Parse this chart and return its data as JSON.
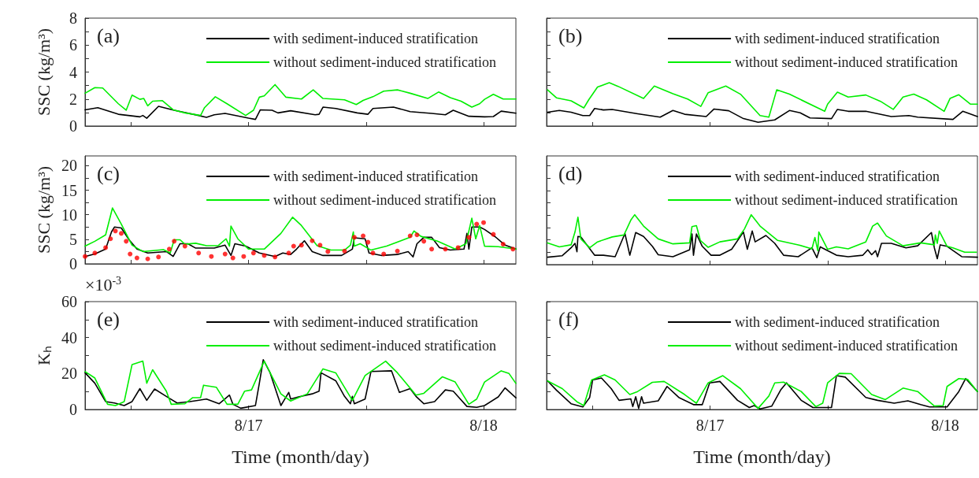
{
  "chart_data": [
    {
      "type": "line",
      "title": "(a)",
      "ylabel": "SSC (kg/m³)",
      "xlim": [
        "--08-16T07:18",
        "--08-18T03:18"
      ],
      "xticks": [
        {
          "value": "--08-16T12:00",
          "label": null
        },
        {
          "value": "--08-17",
          "label": "8/17"
        },
        {
          "value": "--08-17T12:00",
          "label": null
        },
        {
          "value": "--08-18",
          "label": "8/18"
        }
      ],
      "ylim": [
        0,
        8
      ],
      "yticks": [
        0,
        {
          "value": 1,
          "label": null
        },
        2,
        {
          "value": 3,
          "label": null
        },
        4,
        {
          "value": 5,
          "label": null
        },
        6,
        {
          "value": 7,
          "label": null
        },
        8
      ],
      "tick_labels": "y",
      "legend": "top right",
      "marker": "none",
      "line_style": "solid",
      "series": [
        {
          "name": "with sediment-induced stratification",
          "color": "#000000",
          "x": [
            "--08-16T07:18",
            "--08-16T08:36",
            "--08-16T10:42",
            "--08-16T12:54",
            "--08-16T13:12",
            "--08-16T13:36",
            "--08-16T14:48",
            "--08-16T16:24",
            "--08-16T18:54",
            "--08-16T19:42",
            "--08-16T20:30",
            "--08-16T21:36",
            "--08-17T00:00",
            "--08-17T00:42",
            "--08-17T01:12",
            "--08-17T02:24",
            "--08-17T03:00",
            "--08-17T04:18",
            "--08-17T06:48",
            "--08-17T07:12",
            "--08-17T07:36",
            "--08-17T08:54",
            "--08-17T11:06",
            "--08-17T12:12",
            "--08-17T12:42",
            "--08-17T14:48",
            "--08-17T16:30",
            "--08-17T18:42",
            "--08-17T20:06",
            "--08-17T20:54",
            "--08-17T22:30",
            "--08-18T00:06",
            "--08-18T01:00",
            "--08-18T01:48",
            "--08-18T03:18"
          ],
          "values": [
            1.2,
            1.36,
            0.87,
            0.68,
            0.78,
            0.58,
            1.46,
            1.17,
            0.78,
            0.64,
            0.83,
            0.93,
            0.58,
            0.49,
            1.2,
            1.17,
            0.97,
            1.13,
            0.83,
            0.87,
            1.4,
            1.3,
            0.97,
            0.87,
            1.3,
            1.4,
            1.07,
            0.93,
            0.83,
            1.17,
            0.72,
            0.68,
            0.7,
            1.1,
            0.95
          ]
        },
        {
          "name": "without sediment-induced stratification",
          "color": "#00ee00",
          "x": [
            "--08-16T07:18",
            "--08-16T08:18",
            "--08-16T09:06",
            "--08-16T10:42",
            "--08-16T11:30",
            "--08-16T12:06",
            "--08-16T12:54",
            "--08-16T13:18",
            "--08-16T13:42",
            "--08-16T14:12",
            "--08-16T15:12",
            "--08-16T16:18",
            "--08-16T17:30",
            "--08-16T19:06",
            "--08-16T19:30",
            "--08-16T20:36",
            "--08-16T21:48",
            "--08-16T23:42",
            "--08-17T00:30",
            "--08-17T01:06",
            "--08-17T01:36",
            "--08-17T02:42",
            "--08-17T03:48",
            "--08-17T05:24",
            "--08-17T06:36",
            "--08-17T07:36",
            "--08-17T09:48",
            "--08-17T11:00",
            "--08-17T11:42",
            "--08-17T12:42",
            "--08-17T13:48",
            "--08-17T15:12",
            "--08-17T16:30",
            "--08-17T18:18",
            "--08-17T19:24",
            "--08-17T20:36",
            "--08-17T21:42",
            "--08-17T22:48",
            "--08-17T23:36",
            "--08-18T00:06",
            "--08-18T01:00",
            "--08-18T02:00",
            "--08-18T03:18"
          ],
          "values": [
            2.43,
            2.85,
            2.82,
            1.65,
            1.17,
            2.29,
            1.98,
            2.04,
            1.5,
            1.84,
            1.88,
            1.2,
            0.97,
            0.78,
            1.36,
            2.17,
            1.65,
            0.78,
            1.17,
            2.14,
            2.23,
            3.07,
            2.14,
            2.0,
            2.68,
            2.04,
            1.94,
            1.59,
            1.9,
            2.17,
            2.58,
            2.68,
            2.43,
            2.04,
            2.52,
            2.1,
            1.84,
            1.4,
            1.65,
            1.98,
            2.35,
            2.0,
            2.0
          ]
        }
      ]
    },
    {
      "type": "line",
      "title": "(b)",
      "xlim": [
        "--08-16T07:18",
        "--08-18T03:18"
      ],
      "xticks": [
        {
          "value": "--08-16T12:00",
          "label": null
        },
        {
          "value": "--08-17",
          "label": "8/17"
        },
        {
          "value": "--08-17T12:00",
          "label": null
        },
        {
          "value": "--08-18",
          "label": "8/18"
        }
      ],
      "ylim": [
        0,
        8
      ],
      "yticks": [
        0,
        {
          "value": 1,
          "label": null
        },
        2,
        {
          "value": 3,
          "label": null
        },
        4,
        {
          "value": 5,
          "label": null
        },
        6,
        {
          "value": 7,
          "label": null
        },
        8
      ],
      "tick_labels": false,
      "legend": "top right",
      "marker": "none",
      "line_style": "solid",
      "series": [
        {
          "name": "with sediment-induced stratification",
          "color": "#000000",
          "x": [
            "--08-16T07:24",
            "--08-16T08:36",
            "--08-16T09:48",
            "--08-16T11:00",
            "--08-16T11:42",
            "--08-16T12:12",
            "--08-16T13:06",
            "--08-16T14:00",
            "--08-16T16:36",
            "--08-16T18:54",
            "--08-16T20:12",
            "--08-16T21:24",
            "--08-16T23:36",
            "--08-17T00:24",
            "--08-17T01:54",
            "--08-17T03:24",
            "--08-17T04:54",
            "--08-17T06:36",
            "--08-17T08:06",
            "--08-17T09:12",
            "--08-17T10:12",
            "--08-17T12:24",
            "--08-17T13:00",
            "--08-17T14:06",
            "--08-17T15:54",
            "--08-17T18:30",
            "--08-17T20:18",
            "--08-17T21:12",
            "--08-18T00:48",
            "--08-18T01:48",
            "--08-18T03:18"
          ],
          "values": [
            1.02,
            1.15,
            1.02,
            0.77,
            0.77,
            1.3,
            1.19,
            1.23,
            0.91,
            0.66,
            1.15,
            0.87,
            0.7,
            1.26,
            1.13,
            0.55,
            0.28,
            0.45,
            1.15,
            0.98,
            0.6,
            0.55,
            1.23,
            1.09,
            1.09,
            0.7,
            0.77,
            0.66,
            0.49,
            1.09,
            0.7
          ]
        },
        {
          "name": "without sediment-induced stratification",
          "color": "#00ee00",
          "x": [
            "--08-16T07:24",
            "--08-16T08:18",
            "--08-16T09:48",
            "--08-16T11:06",
            "--08-16T11:36",
            "--08-16T12:30",
            "--08-16T13:42",
            "--08-16T14:36",
            "--08-16T17:12",
            "--08-16T18:18",
            "--08-16T20:12",
            "--08-16T21:42",
            "--08-16T23:03",
            "--08-16T23:48",
            "--08-17T01:36",
            "--08-17T03:06",
            "--08-17T05:06",
            "--08-17T06:00",
            "--08-17T06:48",
            "--08-17T08:06",
            "--08-17T11:42",
            "--08-17T12:00",
            "--08-17T13:00",
            "--08-17T14:06",
            "--08-17T15:54",
            "--08-17T17:24",
            "--08-17T18:42",
            "--08-17T19:42",
            "--08-17T20:48",
            "--08-17T22:06",
            "--08-17T23:54",
            "--08-18T00:30",
            "--08-18T01:24",
            "--08-18T02:36",
            "--08-18T03:18"
          ],
          "values": [
            2.68,
            2.09,
            1.87,
            1.34,
            1.94,
            2.89,
            3.21,
            2.94,
            2.04,
            2.96,
            2.4,
            2.0,
            1.45,
            2.47,
            2.96,
            2.36,
            0.77,
            0.66,
            2.68,
            2.36,
            1.09,
            1.62,
            2.51,
            2.15,
            2.3,
            1.83,
            1.23,
            2.15,
            2.36,
            1.94,
            1.09,
            2.04,
            2.32,
            1.62,
            1.62
          ]
        }
      ]
    },
    {
      "type": "line",
      "title": "(c)",
      "ylabel": "SSC (kg/m³)",
      "xlim": [
        "--08-16T07:18",
        "--08-18T03:18"
      ],
      "xticks": [
        {
          "value": "--08-16T12:00",
          "label": null
        },
        {
          "value": "--08-17",
          "label": "8/17"
        },
        {
          "value": "--08-17T12:00",
          "label": null
        },
        {
          "value": "--08-18",
          "label": "8/18"
        }
      ],
      "ylim": [
        0,
        22
      ],
      "yticks": [
        0,
        {
          "value": 2.5,
          "label": null
        },
        5,
        {
          "value": 7.5,
          "label": null
        },
        10,
        {
          "value": 12.5,
          "label": null
        },
        15,
        {
          "value": 17.5,
          "label": null
        },
        20
      ],
      "tick_labels": "y",
      "legend": "top right",
      "marker": "none",
      "line_style": "solid",
      "series": [
        {
          "name": "with sediment-induced stratification",
          "color": "#000000",
          "x": [
            "--08-16T07:18",
            "--08-16T08:18",
            "--08-16T09:24",
            "--08-16T10:00",
            "--08-16T10:18",
            "--08-16T11:00",
            "--08-16T11:48",
            "--08-16T12:36",
            "--08-16T13:42",
            "--08-16T15:36",
            "--08-16T16:18",
            "--08-16T17:00",
            "--08-16T17:48",
            "--08-16T18:36",
            "--08-16T20:30",
            "--08-16T21:36",
            "--08-16T22:12",
            "--08-16T22:36",
            "--08-16T23:42",
            "--08-17T01:06",
            "--08-17T02:42",
            "--08-17T03:30",
            "--08-17T04:18",
            "--08-17T04:54",
            "--08-17T05:42",
            "--08-17T06:30",
            "--08-17T07:36",
            "--08-17T09:30",
            "--08-17T10:36",
            "--08-17T10:48",
            "--08-17T11:54",
            "--08-17T12:18",
            "--08-17T13:36",
            "--08-17T15:12",
            "--08-17T16:18",
            "--08-17T16:48",
            "--08-17T17:12",
            "--08-17T17:54",
            "--08-17T18:42",
            "--08-17T19:30",
            "--08-17T20:36",
            "--08-17T22:00",
            "--08-17T22:18",
            "--08-17T22:30",
            "--08-17T22:48",
            "--08-17T23:36",
            "--08-18T00:06",
            "--08-18T01:12",
            "--08-18T02:12",
            "--08-18T03:18"
          ],
          "values": [
            1.5,
            2.0,
            3.0,
            6.5,
            7.5,
            7.3,
            4.9,
            3.0,
            2.2,
            2.5,
            1.5,
            4.1,
            4.1,
            3.2,
            3.2,
            3.8,
            1.7,
            4.1,
            3.6,
            2.2,
            1.5,
            2.2,
            1.9,
            3.0,
            4.7,
            2.5,
            1.7,
            1.7,
            3.0,
            5.3,
            5.1,
            2.2,
            1.7,
            1.9,
            2.5,
            1.4,
            4.1,
            5.4,
            5.4,
            3.3,
            2.8,
            3.0,
            6.2,
            3.0,
            7.5,
            7.5,
            7.0,
            5.5,
            3.8,
            3.0
          ]
        },
        {
          "name": "without sediment-induced stratification",
          "color": "#00ee00",
          "x": [
            "--08-16T07:18",
            "--08-16T08:18",
            "--08-16T09:24",
            "--08-16T10:06",
            "--08-16T11:00",
            "--08-16T12:06",
            "--08-16T13:12",
            "--08-16T15:18",
            "--08-16T16:00",
            "--08-16T16:24",
            "--08-16T17:00",
            "--08-16T17:30",
            "--08-16T18:36",
            "--08-16T19:42",
            "--08-16T20:54",
            "--08-16T21:42",
            "--08-16T22:03",
            "--08-16T22:12",
            "--08-16T22:54",
            "--08-17T00:00",
            "--08-17T01:36",
            "--08-17T03:18",
            "--08-17T04:30",
            "--08-17T05:24",
            "--08-17T07:00",
            "--08-17T08:24",
            "--08-17T09:48",
            "--08-17T10:24",
            "--08-17T10:42",
            "--08-17T10:48",
            "--08-17T11:24",
            "--08-17T12:30",
            "--08-17T14:06",
            "--08-17T16:30",
            "--08-17T16:54",
            "--08-17T17:36",
            "--08-17T19:18",
            "--08-17T21:06",
            "--08-17T22:12",
            "--08-17T22:48",
            "--08-17T23:12",
            "--08-17T23:36",
            "--08-18T00:06",
            "--08-18T01:30",
            "--08-18T03:18"
          ],
          "values": [
            3.6,
            4.6,
            5.9,
            11.4,
            8.1,
            3.8,
            2.5,
            2.9,
            2.2,
            4.9,
            4.9,
            4.0,
            4.2,
            3.7,
            3.7,
            5.1,
            3.6,
            7.7,
            5.1,
            3.0,
            3.0,
            6.2,
            9.5,
            7.8,
            3.7,
            2.8,
            2.8,
            3.8,
            6.5,
            3.6,
            4.1,
            2.8,
            3.6,
            5.4,
            6.7,
            5.6,
            4.6,
            3.0,
            4.1,
            9.3,
            5.1,
            7.8,
            3.6,
            3.5,
            3.0
          ]
        },
        {
          "type": "scatter",
          "marker": "circle",
          "color": "#ff0000",
          "x": [
            "--08-16T07:18",
            "--08-16T08:18",
            "--08-16T09:24",
            "--08-16T09:54",
            "--08-16T10:24",
            "--08-16T11:00",
            "--08-16T11:30",
            "--08-16T11:54",
            "--08-16T12:36",
            "--08-16T13:42",
            "--08-16T14:48",
            "--08-16T15:54",
            "--08-16T16:24",
            "--08-16T17:30",
            "--08-16T18:54",
            "--08-16T20:12",
            "--08-16T21:36",
            "--08-16T22:24",
            "--08-16T23:30",
            "--08-17T00:30",
            "--08-17T01:36",
            "--08-17T02:42",
            "--08-17T04:06",
            "--08-17T04:36",
            "--08-17T05:24",
            "--08-17T06:30",
            "--08-17T07:18",
            "--08-17T08:06",
            "--08-17T09:48",
            "--08-17T10:48",
            "--08-17T11:42",
            "--08-17T12:12",
            "--08-17T12:42",
            "--08-17T13:48",
            "--08-17T15:12",
            "--08-17T16:30",
            "--08-17T17:12",
            "--08-17T17:54",
            "--08-17T18:42",
            "--08-17T20:06",
            "--08-17T21:24",
            "--08-17T22:30",
            "--08-17T23:18",
            "--08-18T00:00",
            "--08-18T01:00",
            "--08-18T02:00",
            "--08-18T03:00"
          ],
          "values": [
            1.5,
            2.2,
            3.3,
            5.1,
            6.7,
            6.2,
            4.6,
            2.0,
            1.2,
            1.0,
            1.4,
            3.0,
            4.6,
            3.6,
            2.2,
            1.5,
            2.0,
            1.2,
            1.5,
            2.2,
            1.7,
            1.4,
            2.2,
            3.6,
            3.8,
            4.7,
            3.8,
            2.5,
            2.6,
            5.4,
            5.7,
            4.4,
            2.2,
            2.0,
            2.6,
            5.7,
            5.9,
            4.6,
            3.0,
            3.0,
            3.3,
            5.4,
            8.1,
            8.4,
            6.0,
            4.0,
            3.0
          ]
        }
      ]
    },
    {
      "type": "line",
      "title": "(d)",
      "xlim": [
        "--08-16T07:18",
        "--08-18T03:18"
      ],
      "xticks": [
        {
          "value": "--08-16T12:00",
          "label": null
        },
        {
          "value": "--08-17",
          "label": "8/17"
        },
        {
          "value": "--08-17T12:00",
          "label": null
        },
        {
          "value": "--08-18",
          "label": "8/18"
        }
      ],
      "ylim": [
        0,
        22
      ],
      "yticks": [
        0,
        {
          "value": 2.5,
          "label": null
        },
        5,
        {
          "value": 7.5,
          "label": null
        },
        10,
        {
          "value": 12.5,
          "label": null
        },
        15,
        {
          "value": 17.5,
          "label": null
        },
        20
      ],
      "tick_labels": false,
      "legend": "top right",
      "marker": "none",
      "line_style": "solid",
      "series": [
        {
          "name": "with sediment-induced stratification",
          "color": "#000000",
          "x": [
            "--08-16T07:24",
            "--08-16T08:54",
            "--08-16T09:48",
            "--08-16T10:12",
            "--08-16T10:24",
            "--08-16T10:30",
            "--08-16T10:48",
            "--08-16T12:12",
            "--08-16T13:06",
            "--08-16T14:18",
            "--08-16T15:18",
            "--08-16T15:48",
            "--08-16T16:24",
            "--08-16T17:12",
            "--08-16T18:06",
            "--08-16T18:42",
            "--08-16T20:12",
            "--08-16T21:54",
            "--08-16T22:09",
            "--08-16T22:18",
            "--08-16T22:36",
            "--08-16T23:12",
            "--08-17T00:06",
            "--08-17T01:00",
            "--08-17T02:12",
            "--08-17T03:24",
            "--08-17T03:48",
            "--08-17T04:18",
            "--08-17T04:36",
            "--08-17T05:42",
            "--08-17T06:36",
            "--08-17T07:30",
            "--08-17T09:00",
            "--08-17T10:24",
            "--08-17T10:54",
            "--08-17T11:15",
            "--08-17T12:54",
            "--08-17T14:06",
            "--08-17T15:36",
            "--08-17T16:06",
            "--08-17T16:30",
            "--08-17T16:54",
            "--08-17T17:06",
            "--08-17T17:30",
            "--08-17T18:30",
            "--08-17T20:00",
            "--08-17T21:12",
            "--08-17T22:36",
            "--08-17T22:54",
            "--08-17T23:12",
            "--08-17T23:30",
            "--08-18T00:12",
            "--08-18T01:42",
            "--08-18T03:18"
          ],
          "values": [
            1.5,
            1.8,
            3.4,
            4.3,
            2.6,
            5.7,
            5.6,
            1.9,
            1.9,
            1.6,
            6.3,
            1.9,
            6.5,
            5.7,
            3.7,
            2.0,
            1.6,
            3.0,
            6.2,
            1.9,
            6.2,
            3.7,
            1.9,
            1.9,
            3.1,
            6.6,
            3.1,
            6.8,
            4.6,
            5.9,
            4.3,
            1.9,
            1.6,
            3.4,
            1.4,
            3.6,
            1.9,
            1.6,
            1.9,
            3.0,
            2.0,
            2.8,
            1.6,
            4.3,
            4.3,
            3.4,
            3.8,
            6.5,
            3.4,
            1.2,
            4.0,
            3.7,
            1.6,
            1.5
          ]
        },
        {
          "name": "without sediment-induced stratification",
          "color": "#00ee00",
          "x": [
            "--08-16T07:24",
            "--08-16T08:36",
            "--08-16T09:48",
            "--08-16T10:12",
            "--08-16T10:30",
            "--08-16T10:48",
            "--08-16T11:42",
            "--08-16T12:30",
            "--08-16T14:00",
            "--08-16T15:12",
            "--08-16T15:54",
            "--08-16T16:18",
            "--08-16T17:12",
            "--08-16T18:42",
            "--08-16T20:12",
            "--08-16T21:54",
            "--08-16T22:09",
            "--08-16T22:36",
            "--08-16T23:00",
            "--08-16T23:48",
            "--08-17T01:00",
            "--08-17T02:48",
            "--08-17T03:30",
            "--08-17T04:12",
            "--08-17T05:06",
            "--08-17T06:54",
            "--08-17T09:00",
            "--08-17T10:24",
            "--08-17T10:42",
            "--08-17T11:00",
            "--08-17T11:06",
            "--08-17T12:00",
            "--08-17T12:54",
            "--08-17T14:06",
            "--08-17T15:54",
            "--08-17T16:36",
            "--08-17T17:06",
            "--08-17T18:00",
            "--08-17T19:42",
            "--08-17T21:30",
            "--08-17T22:54",
            "--08-17T23:00",
            "--08-17T23:12",
            "--08-17T23:24",
            "--08-18T00:12",
            "--08-18T00:48",
            "--08-18T02:00",
            "--08-18T03:12"
          ],
          "values": [
            4.4,
            3.6,
            4.0,
            6.6,
            9.6,
            5.2,
            3.4,
            4.6,
            5.6,
            6.0,
            9.0,
            10.1,
            7.8,
            5.2,
            4.2,
            4.4,
            7.7,
            7.9,
            4.9,
            3.5,
            4.6,
            5.2,
            7.2,
            10.1,
            7.8,
            4.9,
            4.0,
            3.2,
            5.5,
            2.8,
            6.6,
            3.1,
            3.6,
            3.2,
            4.6,
            7.8,
            8.4,
            5.8,
            3.8,
            4.4,
            4.0,
            6.0,
            4.3,
            6.8,
            3.7,
            3.4,
            2.5,
            2.5
          ]
        }
      ]
    },
    {
      "type": "line",
      "title": "(e)",
      "xlabel": "Time (month/day)",
      "ylabel": "Kₕ",
      "annotations": [
        "×10$^{-3}$"
      ],
      "xlim": [
        "--08-16T07:18",
        "--08-18T03:18"
      ],
      "xticks": [
        {
          "value": "--08-16T12:00",
          "label": null
        },
        {
          "value": "--08-17",
          "label": "8/17"
        },
        {
          "value": "--08-17T12:00",
          "label": null
        },
        {
          "value": "--08-18",
          "label": "8/18"
        }
      ],
      "ylim": [
        0,
        60
      ],
      "yticks": [
        0,
        {
          "value": 10,
          "label": null
        },
        20,
        {
          "value": 30,
          "label": null
        },
        40,
        {
          "value": 50,
          "label": null
        },
        60
      ],
      "legend": "top right",
      "marker": "none",
      "line_style": "solid",
      "series": [
        {
          "name": "with sediment-induced stratification",
          "color": "#000000",
          "x": [
            "--08-16T07:18",
            "--08-16T08:18",
            "--08-16T09:24",
            "--08-16T10:18",
            "--08-16T11:18",
            "--08-16T12:06",
            "--08-16T12:54",
            "--08-16T13:36",
            "--08-16T14:24",
            "--08-16T15:36",
            "--08-16T16:42",
            "--08-16T18:00",
            "--08-16T19:42",
            "--08-16T21:00",
            "--08-16T22:03",
            "--08-16T22:24",
            "--08-16T23:12",
            "--08-17T00:42",
            "--08-17T01:06",
            "--08-17T01:30",
            "--08-17T02:12",
            "--08-17T03:18",
            "--08-17T04:06",
            "--08-17T04:18",
            "--08-17T05:06",
            "--08-17T06:30",
            "--08-17T07:12",
            "--08-17T07:24",
            "--08-17T08:54",
            "--08-17T09:48",
            "--08-17T10:24",
            "--08-17T10:36",
            "--08-17T10:48",
            "--08-17T11:54",
            "--08-17T12:30",
            "--08-17T14:36",
            "--08-17T15:24",
            "--08-17T16:30",
            "--08-17T17:06",
            "--08-17T17:54",
            "--08-17T19:00",
            "--08-17T20:06",
            "--08-17T20:54",
            "--08-17T22:18",
            "--08-17T23:18",
            "--08-18T00:06",
            "--08-18T01:30",
            "--08-18T02:12",
            "--08-18T03:18"
          ],
          "values": [
            20.4,
            14.6,
            4.4,
            3.6,
            2.2,
            4.4,
            11.6,
            5.1,
            11.4,
            7.3,
            3.6,
            4.4,
            5.8,
            3.2,
            8.0,
            2.9,
            0.7,
            2.2,
            14.6,
            27.7,
            20.4,
            2.2,
            9.5,
            5.8,
            7.0,
            8.7,
            10.2,
            20.4,
            16.0,
            7.3,
            3.2,
            7.3,
            3.2,
            5.8,
            21.1,
            21.5,
            9.5,
            11.6,
            7.3,
            3.2,
            4.4,
            10.9,
            10.2,
            1.7,
            1.2,
            2.2,
            7.0,
            12.0,
            6.5
          ]
        },
        {
          "name": "without sediment-induced stratification",
          "color": "#00ee00",
          "x": [
            "--08-16T07:18",
            "--08-16T08:18",
            "--08-16T09:36",
            "--08-16T10:24",
            "--08-16T11:18",
            "--08-16T12:06",
            "--08-16T13:12",
            "--08-16T13:36",
            "--08-16T14:12",
            "--08-16T15:36",
            "--08-16T16:06",
            "--08-16T17:30",
            "--08-16T18:18",
            "--08-16T19:06",
            "--08-16T19:24",
            "--08-16T20:42",
            "--08-16T21:48",
            "--08-16T22:54",
            "--08-16T23:36",
            "--08-17T00:18",
            "--08-17T01:36",
            "--08-17T03:18",
            "--08-17T04:18",
            "--08-17T06:00",
            "--08-17T07:36",
            "--08-17T08:54",
            "--08-17T10:36",
            "--08-17T11:54",
            "--08-17T14:00",
            "--08-17T15:12",
            "--08-17T17:06",
            "--08-17T17:54",
            "--08-17T19:48",
            "--08-17T21:06",
            "--08-17T22:30",
            "--08-17T23:18",
            "--08-18T00:06",
            "--08-18T01:48",
            "--08-18T02:36",
            "--08-18T03:18"
          ],
          "values": [
            21.1,
            17.5,
            2.9,
            2.2,
            4.4,
            25.0,
            26.9,
            14.6,
            22.1,
            10.2,
            2.9,
            3.2,
            6.6,
            6.6,
            13.5,
            12.4,
            2.9,
            2.9,
            10.2,
            10.9,
            26.9,
            8.7,
            4.7,
            8.7,
            22.6,
            20.4,
            5.1,
            18.9,
            26.9,
            20.4,
            8.0,
            9.0,
            18.2,
            15.3,
            2.9,
            5.8,
            15.3,
            21.5,
            20.0,
            14.5
          ]
        }
      ]
    },
    {
      "type": "line",
      "title": "(f)",
      "xlabel": "Time (month/day)",
      "xlim": [
        "--08-16T07:18",
        "--08-18T03:18"
      ],
      "xticks": [
        {
          "value": "--08-16T12:00",
          "label": null
        },
        {
          "value": "--08-17",
          "label": "8/17"
        },
        {
          "value": "--08-17T12:00",
          "label": null
        },
        {
          "value": "--08-18",
          "label": "8/18"
        }
      ],
      "ylim": [
        0,
        60
      ],
      "yticks": [
        0,
        {
          "value": 10,
          "label": null
        },
        20,
        {
          "value": 30,
          "label": null
        },
        40,
        {
          "value": 50,
          "label": null
        },
        60
      ],
      "tick_labels": "x",
      "legend": "top right",
      "marker": "none",
      "line_style": "solid",
      "series": [
        {
          "name": "with sediment-induced stratification",
          "color": "#000000",
          "x": [
            "--08-16T07:24",
            "--08-16T08:18",
            "--08-16T09:48",
            "--08-16T11:00",
            "--08-16T11:42",
            "--08-16T12:00",
            "--08-16T12:54",
            "--08-16T13:54",
            "--08-16T14:42",
            "--08-16T15:54",
            "--08-16T16:06",
            "--08-16T16:24",
            "--08-16T16:42",
            "--08-16T17:00",
            "--08-16T17:12",
            "--08-16T18:42",
            "--08-16T19:36",
            "--08-16T20:48",
            "--08-16T22:18",
            "--08-16T23:12",
            "--08-16T23:57",
            "--08-17T01:00",
            "--08-17T02:48",
            "--08-17T04:00",
            "--08-17T04:30",
            "--08-17T05:06",
            "--08-17T06:18",
            "--08-17T07:12",
            "--08-17T07:48",
            "--08-17T09:18",
            "--08-17T10:30",
            "--08-17T12:24",
            "--08-17T12:54",
            "--08-17T13:48",
            "--08-17T15:54",
            "--08-17T17:06",
            "--08-17T18:48",
            "--08-17T20:12",
            "--08-17T21:30",
            "--08-17T22:24",
            "--08-18T00:12",
            "--08-18T01:24",
            "--08-18T02:06",
            "--08-18T03:18"
          ],
          "values": [
            15.9,
            10.8,
            3.2,
            1.4,
            6.7,
            16.4,
            17.5,
            11.6,
            5.1,
            5.9,
            1.6,
            7.1,
            0.6,
            7.1,
            3.5,
            4.8,
            12.8,
            6.7,
            2.7,
            2.7,
            14.8,
            15.6,
            5.1,
            1.1,
            2.2,
            0.3,
            1.9,
            10.8,
            14.8,
            5.1,
            1.1,
            1.1,
            18.8,
            18.0,
            6.7,
            5.1,
            3.5,
            4.8,
            2.7,
            1.4,
            1.4,
            10.0,
            17.2,
            10.0
          ]
        },
        {
          "name": "without sediment-induced stratification",
          "color": "#00ee00",
          "x": [
            "--08-16T07:24",
            "--08-16T08:54",
            "--08-16T10:24",
            "--08-16T11:06",
            "--08-16T11:54",
            "--08-16T13:12",
            "--08-16T14:18",
            "--08-16T15:48",
            "--08-16T16:36",
            "--08-16T18:06",
            "--08-16T19:18",
            "--08-16T21:24",
            "--08-16T22:36",
            "--08-16T23:48",
            "--08-17T01:18",
            "--08-17T03:06",
            "--08-17T04:54",
            "--08-17T06:00",
            "--08-17T06:36",
            "--08-17T07:30",
            "--08-17T09:18",
            "--08-17T10:48",
            "--08-17T11:30",
            "--08-17T12:00",
            "--08-17T13:12",
            "--08-17T14:24",
            "--08-17T16:30",
            "--08-17T17:54",
            "--08-17T19:42",
            "--08-17T21:12",
            "--08-17T22:54",
            "--08-17T23:48",
            "--08-18T00:12",
            "--08-18T01:24",
            "--08-18T02:18",
            "--08-18T03:18"
          ],
          "values": [
            15.9,
            11.6,
            4.3,
            2.2,
            16.4,
            19.3,
            16.4,
            8.3,
            10.0,
            15.1,
            15.6,
            8.3,
            3.5,
            14.8,
            18.8,
            11.6,
            0.6,
            7.5,
            14.8,
            15.2,
            10.0,
            1.6,
            3.5,
            14.8,
            20.1,
            19.9,
            8.3,
            5.5,
            11.9,
            10.0,
            1.9,
            2.2,
            12.8,
            17.2,
            16.7,
            10.0
          ]
        }
      ]
    }
  ]
}
